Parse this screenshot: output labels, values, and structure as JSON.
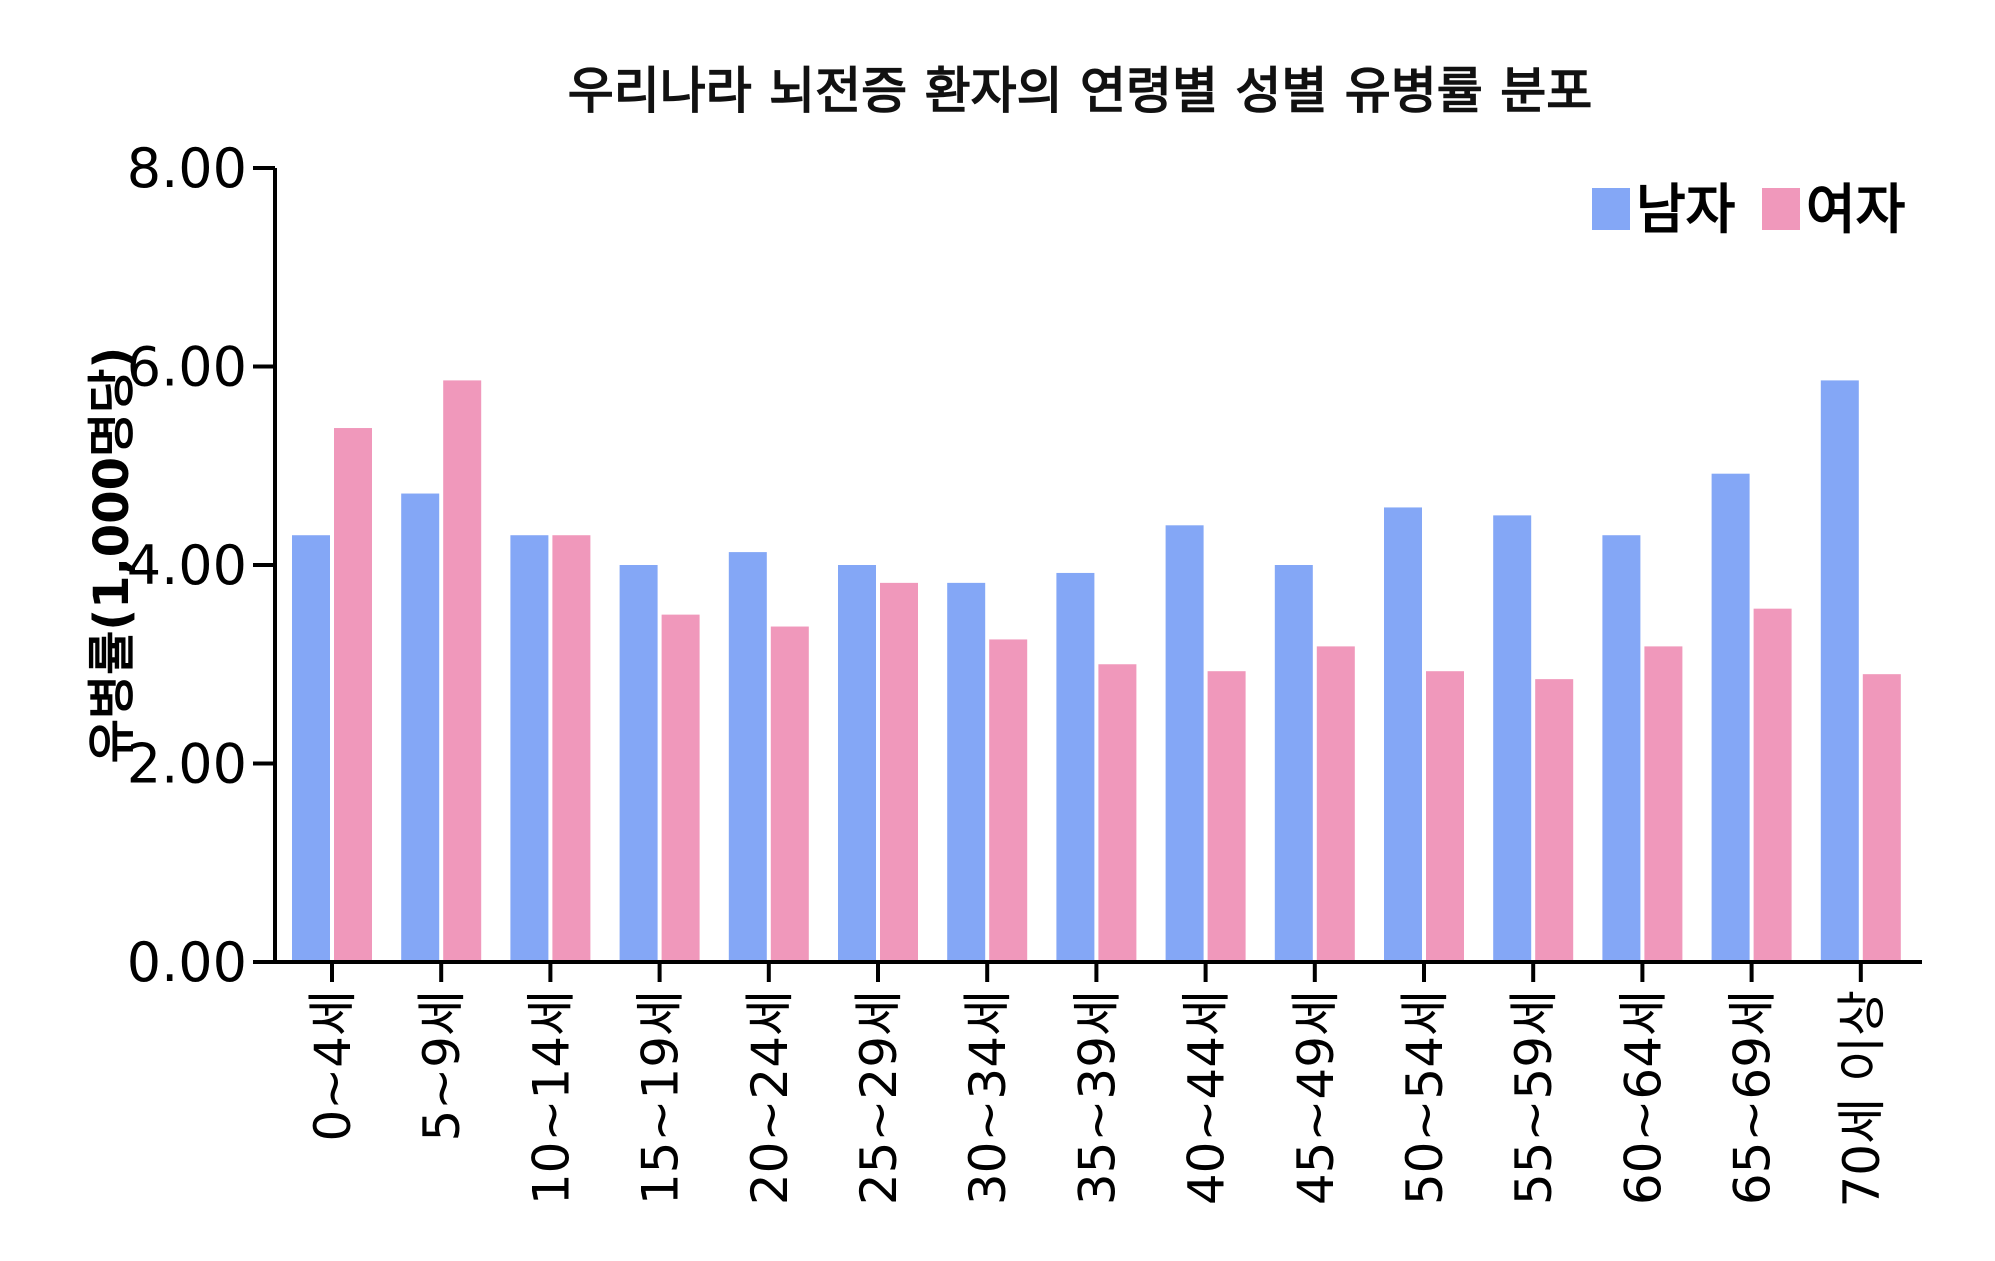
{
  "chart_data": {
    "type": "bar",
    "title": "우리나라 뇌전증 환자의 연령별 성별 유병률 분포",
    "ylabel": "유병률(1,000명당)",
    "xlabel": "",
    "ylim": [
      0,
      8
    ],
    "yticks": [
      "0.00",
      "2.00",
      "4.00",
      "6.00",
      "8.00"
    ],
    "grid": false,
    "legend_position": "top-right",
    "categories": [
      "0~4세",
      "5~9세",
      "10~14세",
      "15~19세",
      "20~24세",
      "25~29세",
      "30~34세",
      "35~39세",
      "40~44세",
      "45~49세",
      "50~54세",
      "55~59세",
      "60~64세",
      "65~69세",
      "70세 이상"
    ],
    "series": [
      {
        "name": "남자",
        "color": "#84a7f6",
        "values": [
          4.3,
          4.72,
          4.3,
          4.0,
          4.13,
          4.0,
          3.82,
          3.92,
          4.4,
          4.0,
          4.58,
          4.5,
          4.3,
          4.92,
          5.86
        ]
      },
      {
        "name": "여자",
        "color": "#f098bb",
        "values": [
          5.38,
          5.86,
          4.3,
          3.5,
          3.38,
          3.82,
          3.25,
          3.0,
          2.93,
          3.18,
          2.93,
          2.85,
          3.18,
          3.56,
          2.9
        ]
      }
    ]
  }
}
